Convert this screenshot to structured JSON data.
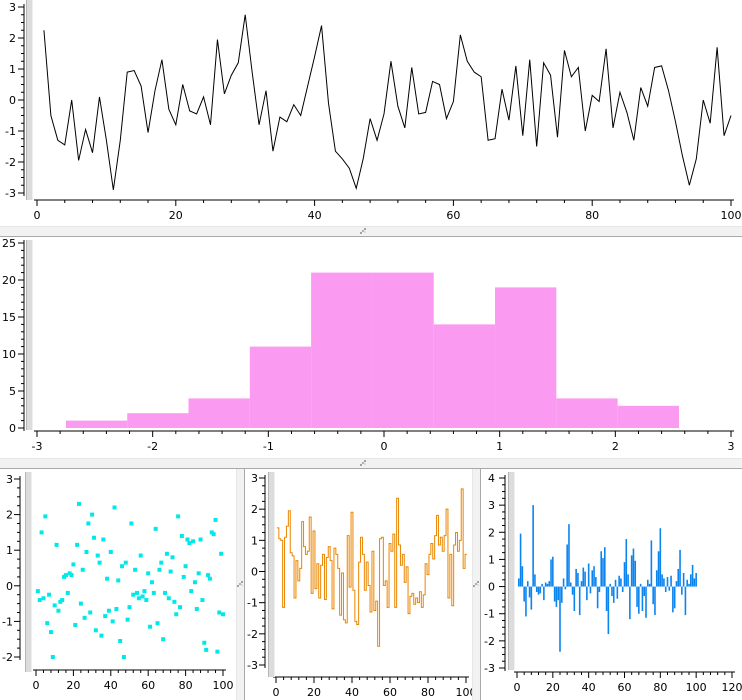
{
  "window": {
    "background": "#ffffff"
  },
  "icons": {
    "splitter_grip": "resize-grip-dots"
  },
  "chart_data": [
    {
      "id": "top-line",
      "type": "line",
      "title": "",
      "color": "#000000",
      "x_start": 1,
      "xlim": [
        0,
        100
      ],
      "ylim": [
        -3,
        3
      ],
      "xticks": {
        "major": 20,
        "minor": 4
      },
      "yticks": {
        "major": 1,
        "minor": 0.25
      },
      "grid": false,
      "values": [
        2.25,
        -0.5,
        -1.3,
        -1.45,
        0,
        -1.95,
        -0.95,
        -1.7,
        0.1,
        -1.3,
        -2.9,
        -1.3,
        0.9,
        0.95,
        0.45,
        -1.05,
        0.3,
        1.3,
        -0.3,
        -0.8,
        0.5,
        -0.35,
        -0.45,
        0.1,
        -0.8,
        1.95,
        0.2,
        0.8,
        1.2,
        2.75,
        0.9,
        -0.8,
        0.3,
        -1.65,
        -0.55,
        -0.7,
        -0.15,
        -0.5,
        0.45,
        1.4,
        2.4,
        -0.1,
        -1.65,
        -1.9,
        -2.2,
        -2.85,
        -1.9,
        -0.6,
        -1.3,
        -0.45,
        1.25,
        -0.2,
        -0.9,
        1.05,
        -0.45,
        -0.4,
        0.6,
        0.5,
        -0.6,
        -0.05,
        2.1,
        1.25,
        0.9,
        0.75,
        -1.3,
        -1.25,
        0.35,
        -0.65,
        1.1,
        -1.15,
        1.3,
        -1.5,
        1.2,
        0.8,
        -1.2,
        1.6,
        0.75,
        1.05,
        -1.0,
        0.15,
        -0.05,
        1.65,
        -0.9,
        0.25,
        -0.4,
        -1.3,
        0.4,
        -0.2,
        1.05,
        1.1,
        0.3,
        -0.7,
        -1.8,
        -2.75,
        -1.9,
        0.0,
        -0.75,
        1.7,
        -1.15,
        -0.5
      ]
    },
    {
      "id": "histogram",
      "type": "histogram",
      "title": "",
      "color": "#fa9af0",
      "bin_start": -2.75,
      "bin_width": 0.53,
      "counts": [
        1,
        2,
        4,
        11,
        21,
        21,
        14,
        19,
        4,
        3
      ],
      "xlim": [
        -3,
        3
      ],
      "ylim": [
        0,
        25
      ],
      "xticks": {
        "major": 1,
        "minor": 0.2
      },
      "yticks": {
        "major": 5,
        "minor": 1
      },
      "grid": false
    },
    {
      "id": "scatter",
      "type": "scatter",
      "title": "",
      "color": "#00e8e8",
      "marker": "square",
      "marker_size": 4,
      "x_start": 1,
      "xlim": [
        0,
        100
      ],
      "ylim": [
        -2,
        3
      ],
      "xticks": {
        "major": 20,
        "minor": 4
      },
      "yticks": {
        "major": 1,
        "minor": 0.25
      },
      "grid": false,
      "values": [
        -0.15,
        -0.4,
        1.5,
        -0.35,
        1.95,
        -1.05,
        -0.25,
        -1.3,
        -2.0,
        -0.55,
        1.15,
        -0.7,
        -0.45,
        -0.4,
        0.25,
        0.3,
        -0.2,
        0.35,
        0.3,
        0.6,
        -1.1,
        1.15,
        2.3,
        -0.5,
        0.45,
        -0.9,
        0.95,
        1.75,
        -0.75,
        2.0,
        1.35,
        -1.25,
        0.85,
        0.65,
        -1.4,
        1.3,
        -0.85,
        0.2,
        -0.7,
        0.95,
        -1.0,
        2.2,
        -0.65,
        0.15,
        -1.55,
        0.55,
        -2.0,
        0.65,
        -0.95,
        -0.6,
        1.75,
        -0.25,
        0.45,
        -0.2,
        -0.35,
        0.85,
        -0.3,
        -0.15,
        -0.4,
        0.35,
        -1.15,
        0.1,
        -0.2,
        1.6,
        -1.05,
        0.45,
        0.65,
        -1.5,
        -0.2,
        0.9,
        -0.35,
        0.4,
        0.8,
        -0.45,
        -0.8,
        1.95,
        -0.6,
        1.4,
        0.25,
        0.55,
        1.3,
        1.2,
        -0.15,
        1.25,
        0.1,
        -0.65,
        0.35,
        1.3,
        -0.4,
        -1.6,
        -1.8,
        0.3,
        0.2,
        1.5,
        1.45,
        1.85,
        -1.85,
        -0.75,
        0.9,
        -0.8
      ]
    },
    {
      "id": "step",
      "type": "step",
      "title": "",
      "color": "#ea8500",
      "x_start": 1,
      "xlim": [
        0,
        100
      ],
      "ylim": [
        -3,
        3
      ],
      "xticks": {
        "major": 20,
        "minor": 4
      },
      "yticks": {
        "major": 1,
        "minor": 0.25
      },
      "grid": false,
      "values": [
        1.4,
        1.05,
        1.0,
        -1.15,
        1.1,
        1.45,
        1.95,
        0.6,
        0.5,
        -0.85,
        0.35,
        -0.3,
        0.1,
        1.6,
        0.8,
        0.55,
        0.65,
        1.75,
        -0.7,
        1.3,
        -0.55,
        0.25,
        -0.85,
        0.2,
        0.55,
        -0.9,
        0.45,
        0.8,
        0.35,
        -1.2,
        0.75,
        0.55,
        0.1,
        -1.4,
        -0.05,
        -1.55,
        -1.65,
        1.15,
        -0.5,
        1.9,
        -0.6,
        -1.6,
        -1.7,
        0.3,
        1.1,
        0.55,
        -0.6,
        0.3,
        -0.45,
        -1.3,
        0.65,
        -1.25,
        -0.95,
        -2.4,
        1.05,
        1.1,
        -0.45,
        -0.3,
        -1.15,
        0.9,
        0.65,
        1.2,
        -1.15,
        2.35,
        0.85,
        0.2,
        0.55,
        -0.35,
        0.15,
        -1.35,
        -0.8,
        -0.7,
        -1.05,
        -0.85,
        -1.0,
        -0.65,
        -1.15,
        -0.75,
        0.25,
        -0.1,
        0.55,
        0.9,
        0.4,
        1.15,
        1.8,
        0.85,
        1.1,
        0.65,
        1.15,
        2.0,
        -0.85,
        0.55,
        -1.1,
        0.85,
        1.25,
        0.65,
        1.0,
        2.65,
        0.1,
        0.55
      ]
    },
    {
      "id": "stem",
      "type": "bar",
      "title": "",
      "color": "#0c84ee",
      "x_start": 1,
      "xlim": [
        0,
        120
      ],
      "ylim": [
        -3,
        4
      ],
      "xticks": {
        "major": 20,
        "minor": 4
      },
      "yticks": {
        "major": 1,
        "minor": 0.25
      },
      "grid": false,
      "values": [
        0.3,
        1.95,
        0.75,
        -0.55,
        -1.1,
        0.2,
        -0.4,
        -0.85,
        3.0,
        0.45,
        -0.2,
        -0.3,
        -0.25,
        0.1,
        -0.5,
        0.15,
        0.1,
        0.2,
        1.0,
        1.1,
        -0.55,
        -0.75,
        -0.5,
        -2.4,
        -0.6,
        0.3,
        -0.1,
        1.55,
        2.3,
        0.15,
        -0.3,
        -0.9,
        0.65,
        0.5,
        -1.05,
        0.2,
        0.7,
        0.55,
        -0.5,
        0.85,
        -0.25,
        0.6,
        0.75,
        0.35,
        -0.8,
        -0.2,
        1.3,
        1.05,
        1.45,
        -0.9,
        -1.75,
        0.1,
        -0.35,
        -0.6,
        0.25,
        -0.45,
        0.4,
        0.3,
        -0.2,
        0.9,
        1.75,
        0.45,
        -1.2,
        1.15,
        1.4,
        0.95,
        -0.75,
        -1.0,
        0.1,
        -0.9,
        -0.35,
        -1.15,
        0.25,
        0.1,
        1.7,
        -0.65,
        -1.05,
        0.6,
        1.3,
        2.15,
        0.45,
        0.3,
        -0.2,
        0.35,
        -0.15,
        0.4,
        -0.95,
        -0.8,
        0.2,
        0.65,
        1.35,
        -0.3,
        0.5,
        -1.05,
        0.25,
        0.1,
        0.45,
        0.8,
        0.3,
        0.5
      ]
    }
  ]
}
